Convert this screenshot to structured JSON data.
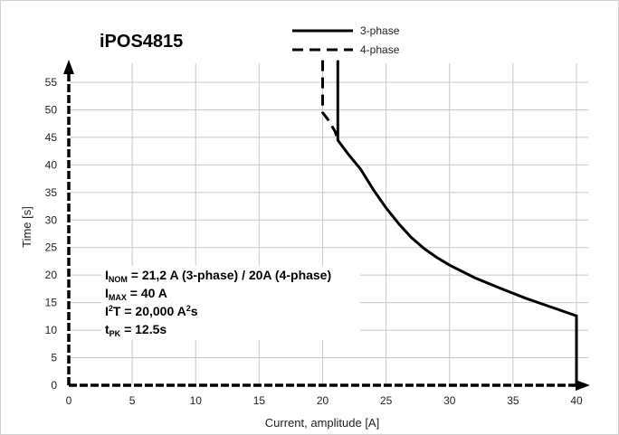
{
  "chart_data": {
    "type": "line",
    "title": "iPOS4815",
    "xlabel": "Current, amplitude [A]",
    "ylabel": "Time [s]",
    "xlim": [
      0,
      40
    ],
    "ylim": [
      0,
      55
    ],
    "x_ticks": [
      "0",
      "5",
      "10",
      "15",
      "20",
      "25",
      "30",
      "35",
      "40"
    ],
    "y_ticks": [
      "0",
      "5",
      "10",
      "15",
      "20",
      "25",
      "30",
      "35",
      "40",
      "45",
      "50",
      "55"
    ],
    "grid": true,
    "legend_position": "top-right",
    "series": [
      {
        "name": "3-phase",
        "style": "solid",
        "points": [
          [
            21.2,
            59
          ],
          [
            21.2,
            44.5
          ],
          [
            22,
            42
          ],
          [
            23,
            39.2
          ],
          [
            24,
            35.5
          ],
          [
            25,
            32.2
          ],
          [
            26,
            29.3
          ],
          [
            27,
            26.8
          ],
          [
            28,
            24.8
          ],
          [
            29,
            23.2
          ],
          [
            30,
            21.8
          ],
          [
            32,
            19.5
          ],
          [
            34,
            17.6
          ],
          [
            36,
            15.8
          ],
          [
            38,
            14.2
          ],
          [
            40,
            12.6
          ],
          [
            40,
            0
          ]
        ]
      },
      {
        "name": "4-phase",
        "style": "dashed",
        "points": [
          [
            20,
            59
          ],
          [
            20,
            49.5
          ],
          [
            20.5,
            48
          ],
          [
            21,
            46
          ],
          [
            21.2,
            44.5
          ]
        ]
      }
    ],
    "annotations": [
      {
        "main": "I",
        "sub": "NOM",
        "rest": " = 21,2 A (3-phase) / 20A (4-phase)"
      },
      {
        "main": "I",
        "sub": "MAX",
        "rest": " = 40 A"
      },
      {
        "main": "I",
        "sup": "2",
        "mid": "T = 20,000 A",
        "sup2": "2",
        "rest": "s"
      },
      {
        "main": "t",
        "sub": "PK",
        "rest": " = 12.5s"
      }
    ]
  }
}
